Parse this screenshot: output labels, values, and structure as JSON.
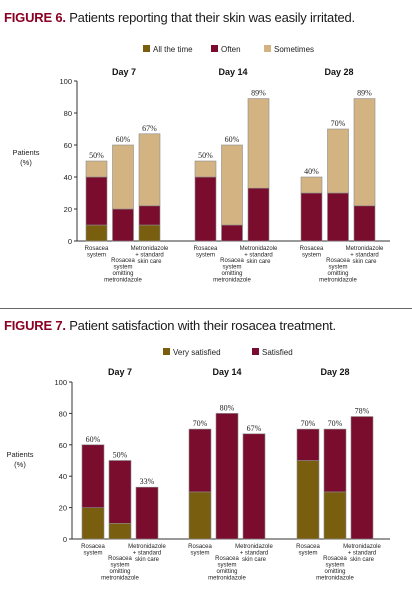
{
  "figures": [
    {
      "label": "FIGURE 6.",
      "caption": "Patients reporting that their skin was easily irritated."
    },
    {
      "label": "FIGURE 7.",
      "caption": "Patient satisfaction with their rosacea treatment."
    }
  ],
  "colors": {
    "dark_olive": "#7a5e10",
    "maroon": "#7a0c2e",
    "tan": "#d4b383"
  },
  "chart_data": [
    {
      "type": "bar",
      "stacked": true,
      "title": "Patients reporting that their skin was easily irritated.",
      "ylabel": "Patients (%)",
      "ylim": [
        0,
        100
      ],
      "yticks": [
        "0",
        "20",
        "40",
        "60",
        "80",
        "100"
      ],
      "groups": [
        "Day 7",
        "Day 14",
        "Day 28"
      ],
      "categories": [
        "Rosacea system",
        "Rosacea system omitting metronidazole",
        "Metronidazole + standard skin care"
      ],
      "series": [
        {
          "name": "All the time",
          "color": "#7a5e10",
          "values": [
            [
              10,
              0,
              10
            ],
            [
              0,
              0,
              0
            ],
            [
              0,
              0,
              0
            ]
          ]
        },
        {
          "name": "Often",
          "color": "#7a0c2e",
          "values": [
            [
              30,
              20,
              12
            ],
            [
              40,
              10,
              33
            ],
            [
              30,
              30,
              22
            ]
          ]
        },
        {
          "name": "Sometimes",
          "color": "#d4b383",
          "values": [
            [
              10,
              40,
              45
            ],
            [
              10,
              50,
              56
            ],
            [
              10,
              40,
              67
            ]
          ]
        }
      ],
      "totals": [
        [
          "50%",
          "60%",
          "67%"
        ],
        [
          "50%",
          "60%",
          "89%"
        ],
        [
          "40%",
          "70%",
          "89%"
        ]
      ]
    },
    {
      "type": "bar",
      "stacked": true,
      "title": "Patient satisfaction with their rosacea treatment.",
      "ylabel": "Patients (%)",
      "ylim": [
        0,
        100
      ],
      "yticks": [
        "0",
        "20",
        "40",
        "60",
        "80",
        "100"
      ],
      "groups": [
        "Day 7",
        "Day 14",
        "Day 28"
      ],
      "categories": [
        "Rosacea system",
        "Rosacea system omitting metronidazole",
        "Metronidazole + standard skin care"
      ],
      "series": [
        {
          "name": "Very satisfied",
          "color": "#7a5e10",
          "values": [
            [
              20,
              10,
              0
            ],
            [
              30,
              0,
              0
            ],
            [
              50,
              30,
              0
            ]
          ]
        },
        {
          "name": "Satisfied",
          "color": "#7a0c2e",
          "values": [
            [
              40,
              40,
              33
            ],
            [
              40,
              80,
              67
            ],
            [
              20,
              40,
              78
            ]
          ]
        }
      ],
      "totals": [
        [
          "60%",
          "50%",
          "33%"
        ],
        [
          "70%",
          "80%",
          "67%"
        ],
        [
          "70%",
          "70%",
          "78%"
        ]
      ]
    }
  ]
}
